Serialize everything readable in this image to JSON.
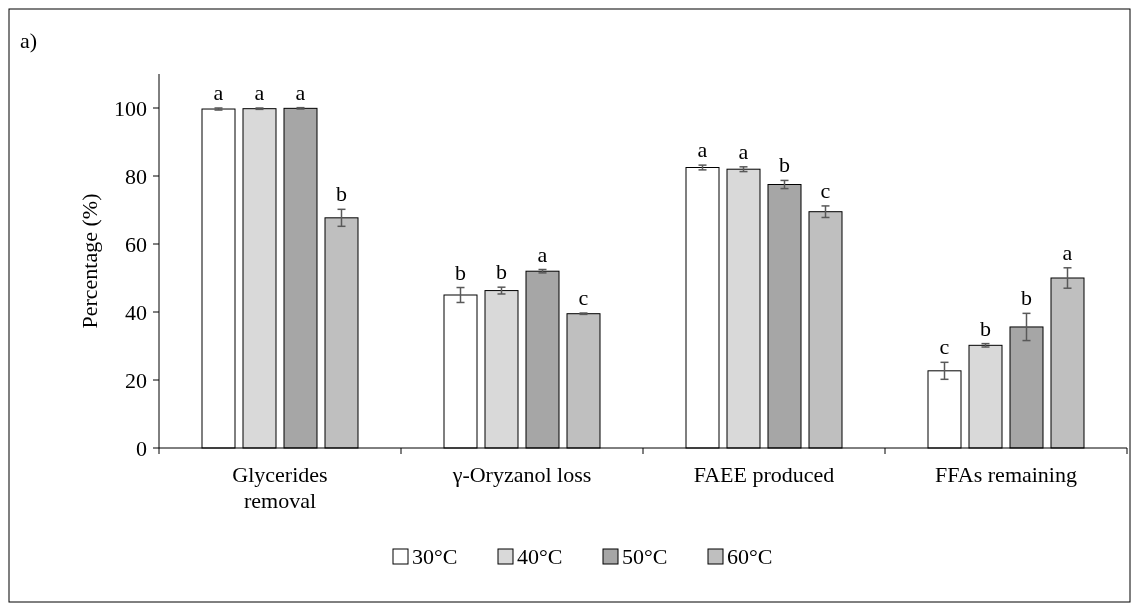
{
  "chart_data": {
    "type": "bar",
    "ylabel": "Percentage (%)",
    "categories": [
      "Glycerides removal",
      "γ-Oryzanol loss",
      "FAEE produced",
      "FFAs remaining"
    ],
    "series": [
      {
        "name": "30°C",
        "color": "#ffffff",
        "values": [
          99.7,
          45,
          82.5,
          22.7
        ],
        "errors": [
          0.3,
          2.2,
          0.7,
          2.5
        ],
        "value_labels": [
          "a",
          "b",
          "a",
          "c"
        ]
      },
      {
        "name": "40°C",
        "color": "#d9d9d9",
        "values": [
          99.8,
          46.3,
          82,
          30.2
        ],
        "errors": [
          0.2,
          1,
          0.7,
          0.5
        ],
        "value_labels": [
          "a",
          "b",
          "a",
          "b"
        ]
      },
      {
        "name": "50°C",
        "color": "#a6a6a6",
        "values": [
          99.9,
          52,
          77.5,
          35.6
        ],
        "errors": [
          0.2,
          0.5,
          1.2,
          4
        ],
        "value_labels": [
          "a",
          "a",
          "b",
          "b"
        ]
      },
      {
        "name": "60°C",
        "color": "#bfbfbf",
        "values": [
          67.7,
          39.5,
          69.5,
          50
        ],
        "errors": [
          2.5,
          0.2,
          1.7,
          3
        ],
        "value_labels": [
          "b",
          "c",
          "c",
          "a"
        ]
      }
    ],
    "ylim": [
      0,
      110
    ],
    "yticks": [
      0,
      20,
      40,
      60,
      80,
      100
    ],
    "grid": false,
    "legend": "bottom",
    "annotations": [
      "a)"
    ]
  }
}
